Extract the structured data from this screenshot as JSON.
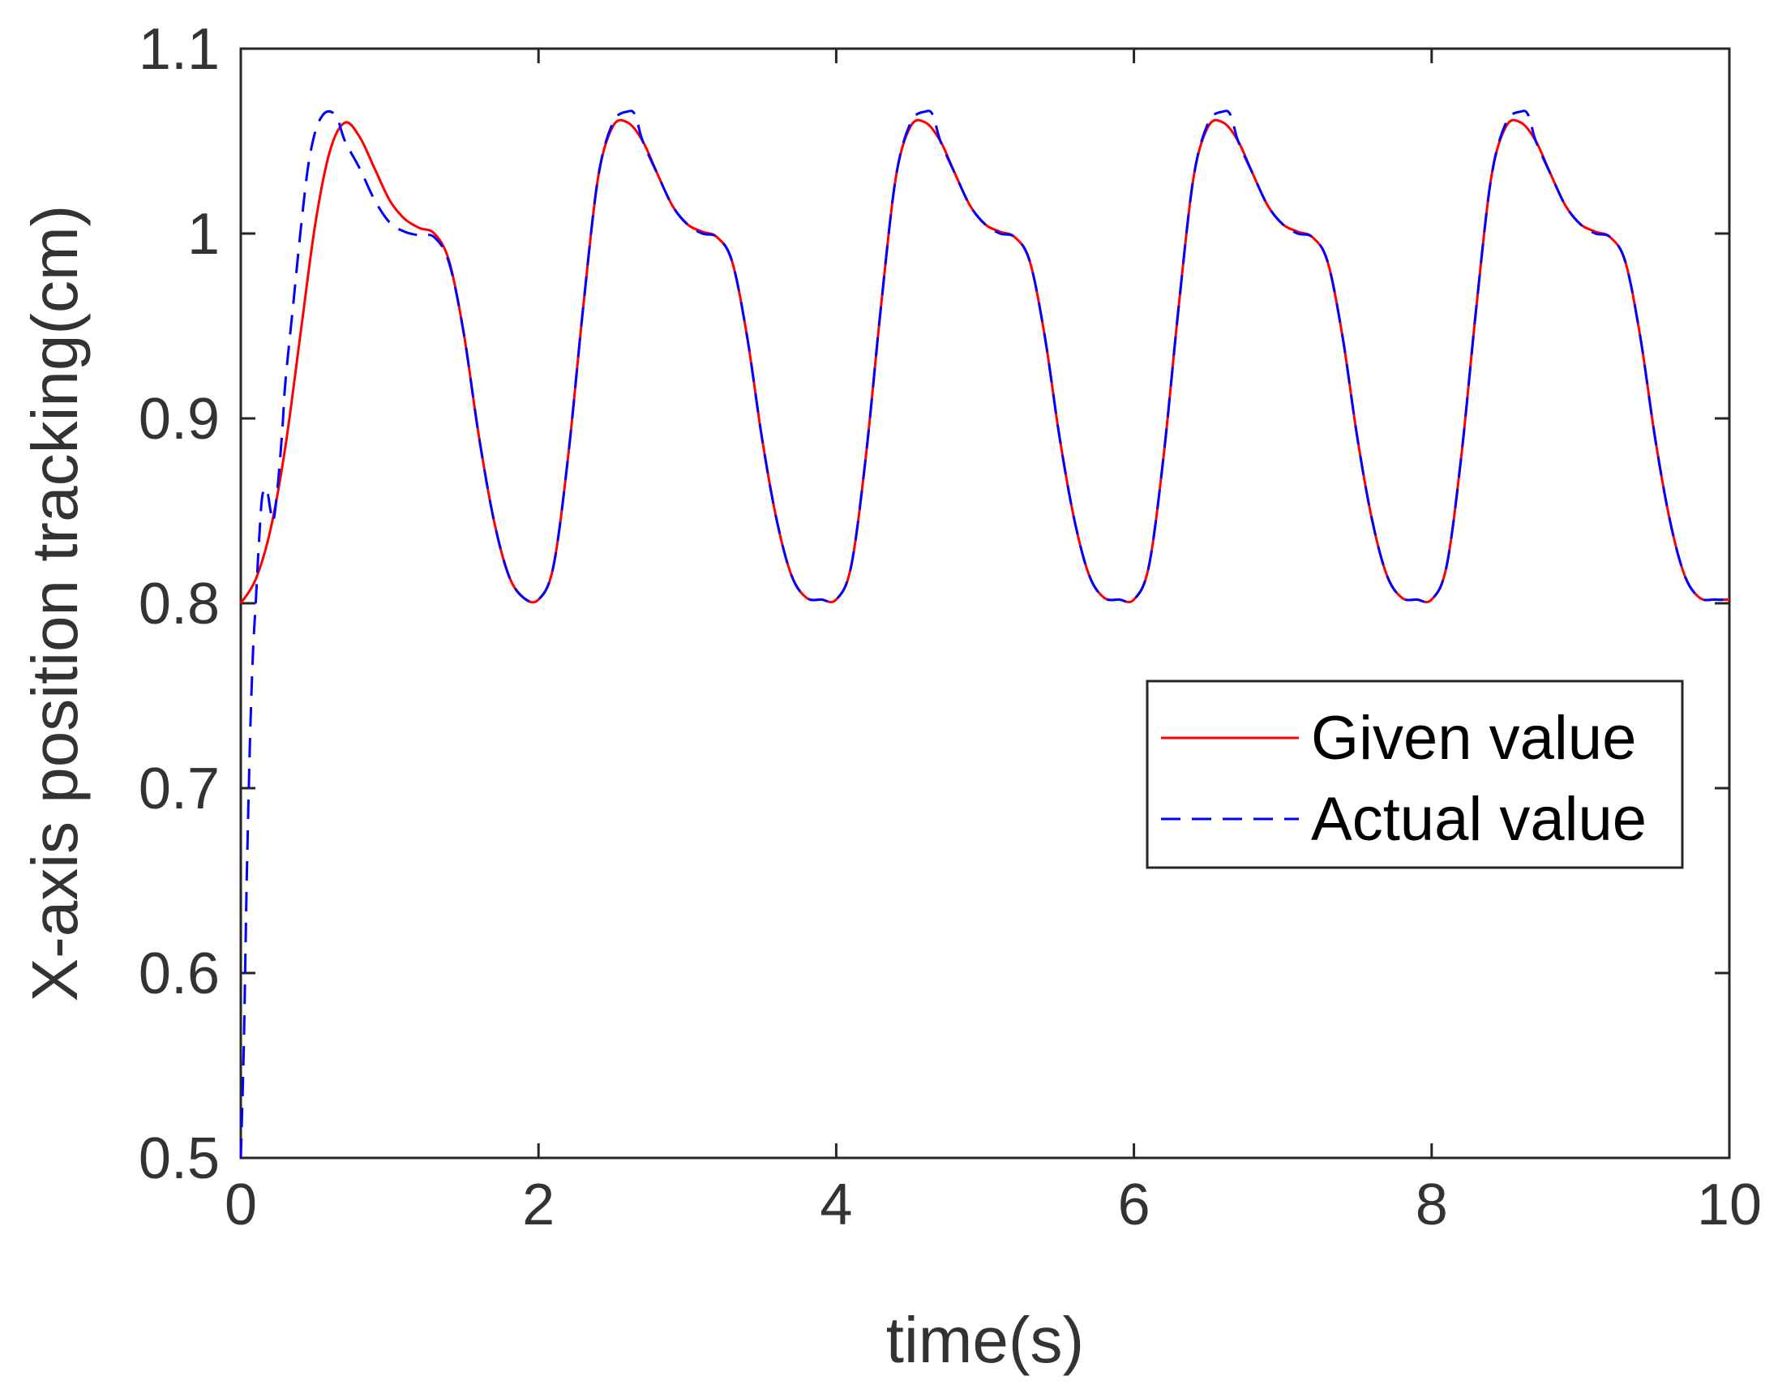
{
  "chart_data": {
    "type": "line",
    "title": "",
    "xlabel": "time(s)",
    "ylabel": "X-axis position tracking(cm)",
    "xlim": [
      0,
      10
    ],
    "ylim": [
      0.5,
      1.1
    ],
    "xticks": [
      0,
      2,
      4,
      6,
      8,
      10
    ],
    "xtick_labels": [
      "0",
      "2",
      "4",
      "6",
      "8",
      "10"
    ],
    "yticks": [
      0.5,
      0.6,
      0.7,
      0.8,
      0.9,
      1.0,
      1.1
    ],
    "ytick_labels": [
      "0.5",
      "0.6",
      "0.7",
      "0.8",
      "0.9",
      "1",
      "1.1"
    ],
    "grid": false,
    "legend_position": "middle-right",
    "series": [
      {
        "name": "Given value",
        "color": "#ff0000",
        "style": "solid",
        "x": [
          0,
          0.1,
          0.2,
          0.3,
          0.4,
          0.5,
          0.6,
          0.7,
          0.8,
          0.9,
          1.0,
          1.1,
          1.2,
          1.3,
          1.4,
          1.5,
          1.6,
          1.7,
          1.8,
          1.9,
          2.0,
          2.1,
          2.2,
          2.3,
          2.4,
          2.5,
          2.6,
          2.7,
          2.8,
          2.9,
          3.0,
          3.1,
          3.2,
          3.3,
          3.4,
          3.5,
          3.6,
          3.7,
          3.8,
          3.9,
          4.0,
          4.1,
          4.2,
          4.3,
          4.4,
          4.5,
          4.6,
          4.7,
          4.8,
          4.9,
          5.0,
          5.1,
          5.2,
          5.3,
          5.4,
          5.5,
          5.6,
          5.7,
          5.8,
          5.9,
          6.0,
          6.1,
          6.2,
          6.3,
          6.4,
          6.5,
          6.6,
          6.7,
          6.8,
          6.9,
          7.0,
          7.1,
          7.2,
          7.3,
          7.4,
          7.5,
          7.6,
          7.7,
          7.8,
          7.9,
          8.0,
          8.1,
          8.2,
          8.3,
          8.4,
          8.5,
          8.6,
          8.7,
          8.8,
          8.9,
          9.0,
          9.1,
          9.2,
          9.3,
          9.4,
          9.5,
          9.6,
          9.7,
          9.8,
          9.9,
          10.0
        ],
        "values": [
          0.8,
          0.813,
          0.84,
          0.885,
          0.945,
          1.005,
          1.045,
          1.06,
          1.052,
          1.035,
          1.018,
          1.008,
          1.003,
          1.0,
          0.985,
          0.945,
          0.89,
          0.845,
          0.815,
          0.803,
          0.802,
          0.82,
          0.88,
          0.96,
          1.03,
          1.058,
          1.06,
          1.05,
          1.032,
          1.015,
          1.005,
          1.001,
          0.998,
          0.985,
          0.945,
          0.89,
          0.845,
          0.815,
          0.803,
          0.802,
          0.802,
          0.82,
          0.88,
          0.96,
          1.03,
          1.058,
          1.06,
          1.05,
          1.032,
          1.015,
          1.005,
          1.001,
          0.998,
          0.985,
          0.945,
          0.89,
          0.845,
          0.815,
          0.803,
          0.802,
          0.802,
          0.82,
          0.88,
          0.96,
          1.03,
          1.058,
          1.06,
          1.05,
          1.032,
          1.015,
          1.005,
          1.001,
          0.998,
          0.985,
          0.945,
          0.89,
          0.845,
          0.815,
          0.803,
          0.802,
          0.802,
          0.82,
          0.88,
          0.96,
          1.03,
          1.058,
          1.06,
          1.05,
          1.032,
          1.015,
          1.005,
          1.001,
          0.998,
          0.985,
          0.945,
          0.89,
          0.845,
          0.815,
          0.803,
          0.802,
          0.802
        ]
      },
      {
        "name": "Actual value",
        "color": "#0000ff",
        "style": "dashed",
        "x": [
          0,
          0.02,
          0.04,
          0.06,
          0.08,
          0.1,
          0.12,
          0.14,
          0.16,
          0.18,
          0.2,
          0.22,
          0.25,
          0.28,
          0.3,
          0.35,
          0.4,
          0.45,
          0.5,
          0.55,
          0.6,
          0.65,
          0.7,
          0.8,
          0.9,
          1.0,
          1.1,
          1.2,
          1.3,
          1.4,
          1.5,
          1.6,
          1.7,
          1.8,
          1.9,
          2.0,
          2.1,
          2.2,
          2.3,
          2.4,
          2.5,
          2.6,
          2.65,
          2.7,
          2.8,
          2.9,
          3.0,
          3.1,
          3.2,
          3.3,
          3.4,
          3.5,
          3.6,
          3.7,
          3.8,
          3.9,
          4.0,
          4.1,
          4.2,
          4.3,
          4.4,
          4.5,
          4.6,
          4.65,
          4.7,
          4.8,
          4.9,
          5.0,
          5.1,
          5.2,
          5.3,
          5.4,
          5.5,
          5.6,
          5.7,
          5.8,
          5.9,
          6.0,
          6.1,
          6.2,
          6.3,
          6.4,
          6.5,
          6.6,
          6.65,
          6.7,
          6.8,
          6.9,
          7.0,
          7.1,
          7.2,
          7.3,
          7.4,
          7.5,
          7.6,
          7.7,
          7.8,
          7.9,
          8.0,
          8.1,
          8.2,
          8.3,
          8.4,
          8.5,
          8.6,
          8.65,
          8.7,
          8.8,
          8.9,
          9.0,
          9.1,
          9.2,
          9.3,
          9.4,
          9.5,
          9.6,
          9.7,
          9.8,
          9.9,
          10.0
        ],
        "values": [
          0.5,
          0.56,
          0.65,
          0.72,
          0.77,
          0.8,
          0.83,
          0.855,
          0.862,
          0.86,
          0.85,
          0.845,
          0.865,
          0.895,
          0.92,
          0.96,
          1.0,
          1.035,
          1.055,
          1.064,
          1.066,
          1.062,
          1.05,
          1.035,
          1.018,
          1.006,
          1.001,
          0.999,
          0.998,
          0.984,
          0.945,
          0.89,
          0.845,
          0.815,
          0.803,
          0.802,
          0.82,
          0.88,
          0.96,
          1.03,
          1.06,
          1.066,
          1.064,
          1.05,
          1.032,
          1.015,
          1.005,
          1.0,
          0.998,
          0.985,
          0.945,
          0.89,
          0.845,
          0.815,
          0.803,
          0.802,
          0.802,
          0.82,
          0.88,
          0.96,
          1.03,
          1.06,
          1.066,
          1.064,
          1.05,
          1.032,
          1.015,
          1.005,
          1.0,
          0.998,
          0.985,
          0.945,
          0.89,
          0.845,
          0.815,
          0.803,
          0.802,
          0.802,
          0.82,
          0.88,
          0.96,
          1.03,
          1.06,
          1.066,
          1.064,
          1.05,
          1.032,
          1.015,
          1.005,
          1.0,
          0.998,
          0.985,
          0.945,
          0.89,
          0.845,
          0.815,
          0.803,
          0.802,
          0.802,
          0.82,
          0.88,
          0.96,
          1.03,
          1.06,
          1.066,
          1.064,
          1.05,
          1.032,
          1.015,
          1.005,
          1.0,
          0.998,
          0.985,
          0.945,
          0.89,
          0.845,
          0.815,
          0.803,
          0.802,
          0.802
        ]
      }
    ]
  }
}
